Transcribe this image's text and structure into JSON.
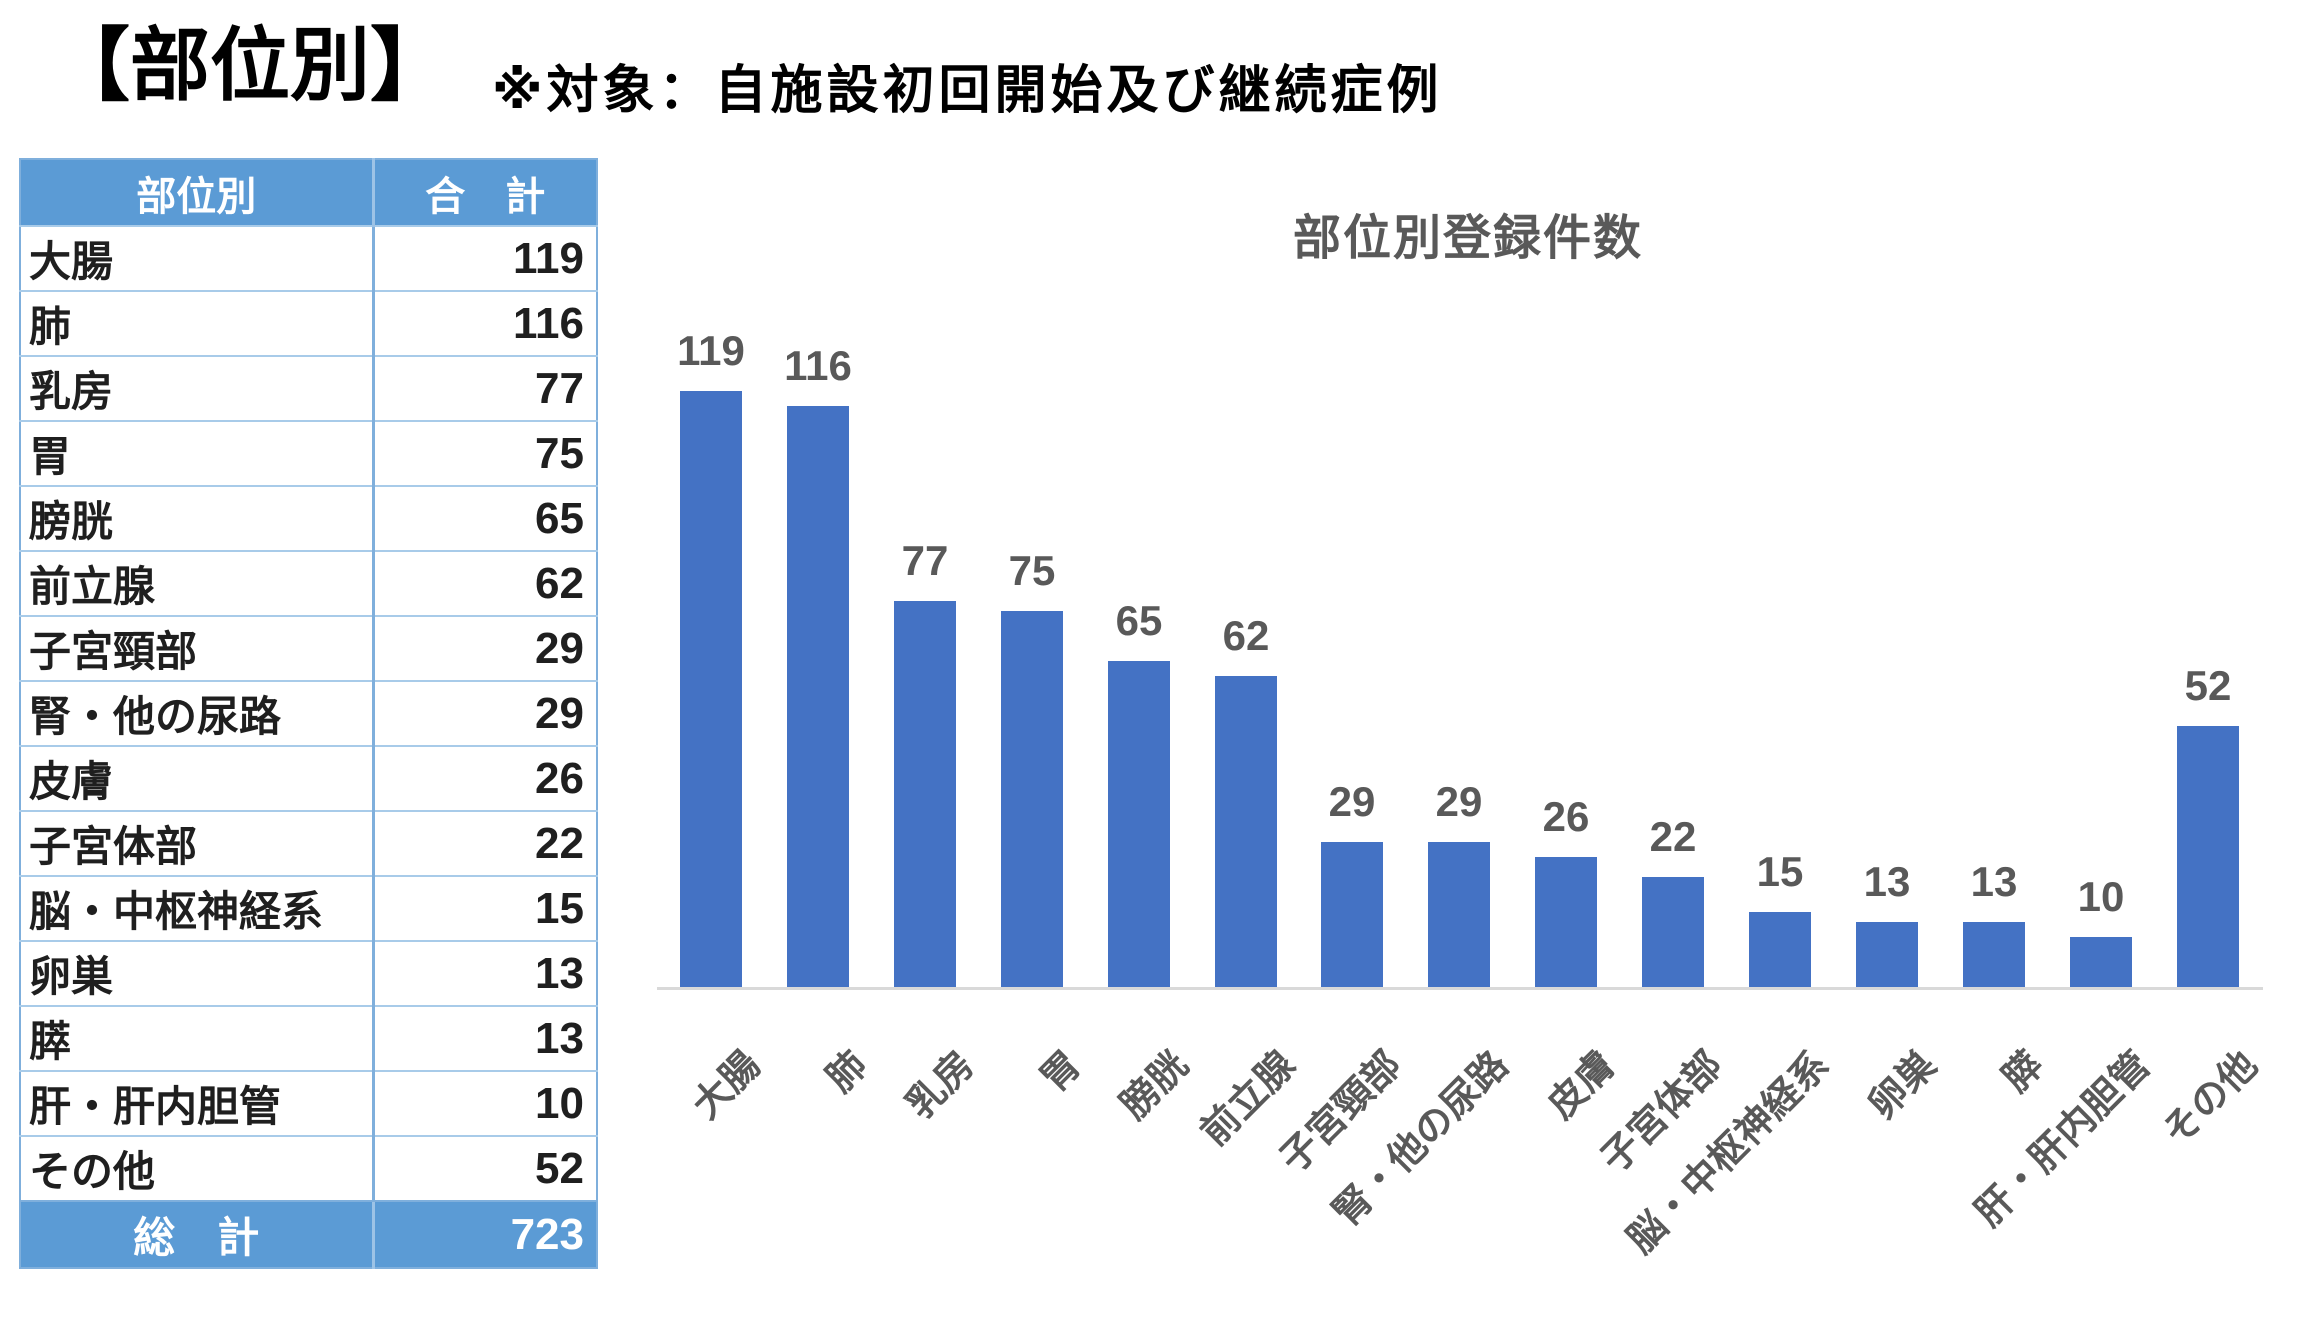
{
  "header": {
    "title": "【部位別】",
    "note": "※対象：自施設初回開始及び継続症例"
  },
  "table": {
    "headers": [
      "部位別",
      "合　計"
    ],
    "rows": [
      {
        "label": "大腸",
        "value": 119
      },
      {
        "label": "肺",
        "value": 116
      },
      {
        "label": "乳房",
        "value": 77
      },
      {
        "label": "胃",
        "value": 75
      },
      {
        "label": "膀胱",
        "value": 65
      },
      {
        "label": "前立腺",
        "value": 62
      },
      {
        "label": "子宮頸部",
        "value": 29
      },
      {
        "label": "腎・他の尿路",
        "value": 29
      },
      {
        "label": "皮膚",
        "value": 26
      },
      {
        "label": "子宮体部",
        "value": 22
      },
      {
        "label": "脳・中枢神経系",
        "value": 15
      },
      {
        "label": "卵巣",
        "value": 13
      },
      {
        "label": "膵",
        "value": 13
      },
      {
        "label": "肝・肝内胆管",
        "value": 10
      },
      {
        "label": "その他",
        "value": 52
      }
    ],
    "total_label": "総　計",
    "total_value": 723
  },
  "chart_data": {
    "type": "bar",
    "title": "部位別登録件数",
    "categories": [
      "大腸",
      "肺",
      "乳房",
      "胃",
      "膀胱",
      "前立腺",
      "子宮頸部",
      "腎・他の尿路",
      "皮膚",
      "子宮体部",
      "脳・中枢神経系",
      "卵巣",
      "膵",
      "肝・肝内胆管",
      "その他"
    ],
    "values": [
      119,
      116,
      77,
      75,
      65,
      62,
      29,
      29,
      26,
      22,
      15,
      13,
      13,
      10,
      52
    ],
    "xlabel": "",
    "ylabel": "",
    "ylim": [
      0,
      125
    ],
    "gridlines": false,
    "y_axis_visible": false,
    "data_labels": true,
    "legend_position": "none",
    "bar_color": "#4472C4",
    "label_color": "#595959",
    "axis_line_color": "#D9D9D9"
  },
  "colors": {
    "table_header_bg": "#5B9BD5",
    "table_border": "#7FAFDC",
    "row_separator": "#A8CBE9",
    "heading_text": "#000000",
    "table_text": "#1f1f1f"
  }
}
